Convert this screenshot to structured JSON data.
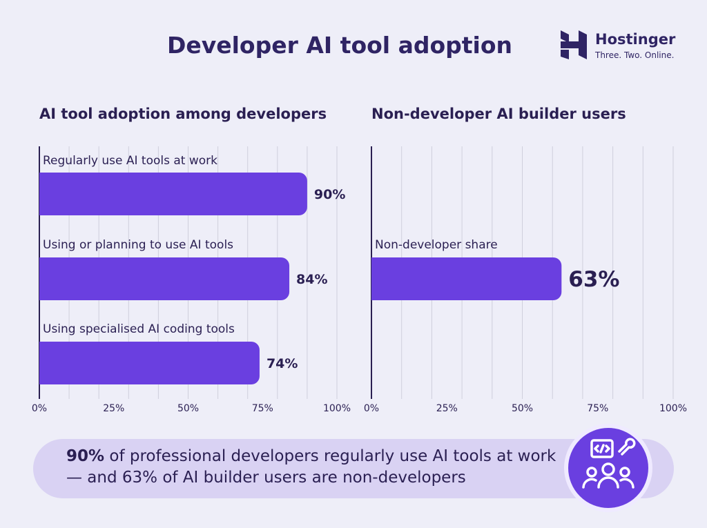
{
  "header": {
    "title": "Developer AI tool adoption",
    "brand_name": "Hostinger",
    "brand_tagline": "Three. Two. Online."
  },
  "colors": {
    "bar": "#6a3fe0",
    "text": "#2a1f52",
    "grid": "#cfcfdc"
  },
  "chart_data": [
    {
      "type": "bar",
      "orientation": "horizontal",
      "title": "AI tool adoption among developers",
      "categories": [
        "Regularly use AI tools at work",
        "Using or planning to use AI tools",
        "Using specialised AI coding tools"
      ],
      "values": [
        90,
        84,
        74
      ],
      "value_labels": [
        "90%",
        "84%",
        "74%"
      ],
      "xlim": [
        0,
        100
      ],
      "xticks": [
        "0%",
        "25%",
        "50%",
        "75%",
        "100%"
      ],
      "grid": true
    },
    {
      "type": "bar",
      "orientation": "horizontal",
      "title": "Non-developer AI builder users",
      "categories": [
        "Non-developer share"
      ],
      "values": [
        63
      ],
      "value_labels": [
        "63%"
      ],
      "xlim": [
        0,
        100
      ],
      "xticks": [
        "0%",
        "25%",
        "50%",
        "75%",
        "100%"
      ],
      "grid": true
    }
  ],
  "callout": {
    "highlight": "90%",
    "text": " of professional developers regularly use AI tools at work — and 63% of AI builder users are non-developers",
    "icon": "developer-team-icon"
  }
}
